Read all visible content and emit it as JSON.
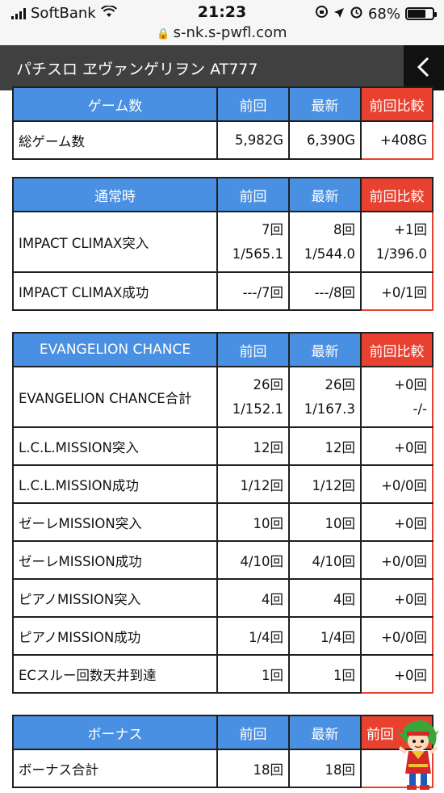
{
  "status_bar": {
    "carrier": "SoftBank",
    "time": "21:23",
    "battery": "68%",
    "battery_level": 0.68,
    "url": "s-nk.s-pwfl.com"
  },
  "header": {
    "title": "パチスロ ヱヴァンゲリヲン AT777",
    "back_icon": "chevron-left-icon"
  },
  "colors": {
    "header_blue": "#4a90e2",
    "compare_red": "#e8412f",
    "appbar": "#404040"
  },
  "tables": [
    {
      "headers": [
        "ゲーム数",
        "前回",
        "最新",
        "前回比較"
      ],
      "rows": [
        [
          "総ゲーム数",
          "5,982G",
          "6,390G",
          "+408G"
        ]
      ]
    },
    {
      "headers": [
        "通常時",
        "前回",
        "最新",
        "前回比較"
      ],
      "rows": [
        [
          "IMPACT CLIMAX突入",
          "7回\n1/565.1",
          "8回\n1/544.0",
          "+1回\n1/396.0"
        ],
        [
          "IMPACT CLIMAX成功",
          "---/7回",
          "---/8回",
          "+0/1回"
        ]
      ]
    },
    {
      "headers": [
        "EVANGELION CHANCE",
        "前回",
        "最新",
        "前回比較"
      ],
      "rows": [
        [
          "EVANGELION CHANCE合計",
          "26回\n1/152.1",
          "26回\n1/167.3",
          "+0回\n-/-"
        ],
        [
          "L.C.L.MISSION突入",
          "12回",
          "12回",
          "+0回"
        ],
        [
          "L.C.L.MISSION成功",
          "1/12回",
          "1/12回",
          "+0/0回"
        ],
        [
          "ゼーレMISSION突入",
          "10回",
          "10回",
          "+0回"
        ],
        [
          "ゼーレMISSION成功",
          "4/10回",
          "4/10回",
          "+0/0回"
        ],
        [
          "ピアノMISSION突入",
          "4回",
          "4回",
          "+0回"
        ],
        [
          "ピアノMISSION成功",
          "1/4回",
          "1/4回",
          "+0/0回"
        ],
        [
          "ECスルー回数天井到達",
          "1回",
          "1回",
          "+0回"
        ]
      ]
    },
    {
      "headers": [
        "ボーナス",
        "前回",
        "最新",
        "前回"
      ],
      "rows": [
        [
          "ボーナス合計",
          "18回",
          "18回",
          ""
        ]
      ]
    }
  ],
  "mascot": {
    "icon": "mascot-character-icon"
  }
}
